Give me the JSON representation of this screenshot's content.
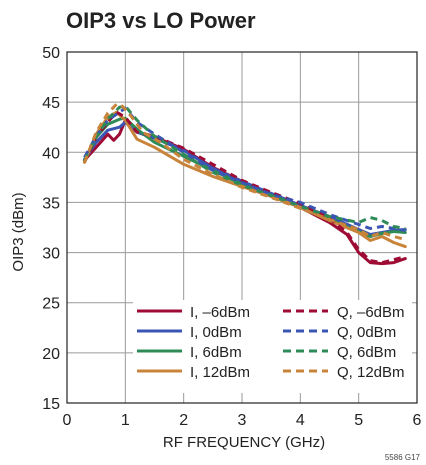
{
  "chart_data": {
    "type": "line",
    "title": "OIP3 vs LO Power",
    "xlabel": "RF FREQUENCY (GHz)",
    "ylabel": "OIP3 (dBm)",
    "xlim": [
      0,
      6
    ],
    "ylim": [
      15,
      50
    ],
    "xticks": [
      0,
      1,
      2,
      3,
      4,
      5,
      6
    ],
    "yticks": [
      15,
      20,
      25,
      30,
      35,
      40,
      45,
      50
    ],
    "grid": true,
    "legend_position": "bottom-right",
    "footnote": "5586 G17",
    "series": [
      {
        "name": "I, –6dBm",
        "color": "#9e0b34",
        "dashed": false,
        "x": [
          0.3,
          0.5,
          0.7,
          0.8,
          0.9,
          1.0,
          1.1,
          1.3,
          1.6,
          2.0,
          2.5,
          3.0,
          3.5,
          4.0,
          4.5,
          4.8,
          5.0,
          5.2,
          5.4,
          5.6,
          5.8
        ],
        "y": [
          39.2,
          40.5,
          41.8,
          41.2,
          41.8,
          43.2,
          42.6,
          41.8,
          41.3,
          40.3,
          38.5,
          37.1,
          35.8,
          34.5,
          33.0,
          31.8,
          30.0,
          29.0,
          28.9,
          29.0,
          29.4
        ]
      },
      {
        "name": "I, 0dBm",
        "color": "#3a55b4",
        "dashed": false,
        "x": [
          0.3,
          0.5,
          0.7,
          0.9,
          1.0,
          1.2,
          1.5,
          2.0,
          2.5,
          3.0,
          3.5,
          4.0,
          4.5,
          5.0,
          5.2,
          5.4,
          5.6,
          5.8
        ],
        "y": [
          39.3,
          41.0,
          42.2,
          42.5,
          43.0,
          42.0,
          41.4,
          40.2,
          38.4,
          37.1,
          35.9,
          34.7,
          33.6,
          32.3,
          31.8,
          32.0,
          32.2,
          32.3
        ]
      },
      {
        "name": "I, 6dBm",
        "color": "#2e8b57",
        "dashed": false,
        "x": [
          0.3,
          0.5,
          0.7,
          0.9,
          1.0,
          1.2,
          1.5,
          2.0,
          2.5,
          3.0,
          3.5,
          4.0,
          4.5,
          5.0,
          5.2,
          5.4,
          5.6,
          5.8
        ],
        "y": [
          39.2,
          41.5,
          42.8,
          43.3,
          43.4,
          42.3,
          41.0,
          39.6,
          38.2,
          36.8,
          35.6,
          34.5,
          33.3,
          32.1,
          31.6,
          31.9,
          32.1,
          32.0
        ]
      },
      {
        "name": "I, 12dBm",
        "color": "#c8843a",
        "dashed": false,
        "x": [
          0.3,
          0.5,
          0.7,
          0.85,
          1.0,
          1.2,
          1.5,
          2.0,
          2.5,
          3.0,
          3.5,
          4.0,
          4.5,
          5.0,
          5.2,
          5.4,
          5.6,
          5.8
        ],
        "y": [
          39.0,
          41.8,
          43.5,
          44.0,
          43.2,
          41.3,
          40.5,
          38.8,
          37.6,
          36.6,
          35.6,
          34.5,
          33.2,
          32.0,
          31.2,
          31.6,
          31.0,
          30.6
        ]
      },
      {
        "name": "Q, –6dBm",
        "color": "#9e0b34",
        "dashed": true,
        "x": [
          0.3,
          0.5,
          0.7,
          0.85,
          1.0,
          1.2,
          1.5,
          2.0,
          2.5,
          3.0,
          3.5,
          4.0,
          4.5,
          4.8,
          5.0,
          5.2,
          5.4,
          5.6,
          5.8
        ],
        "y": [
          39.0,
          41.5,
          43.0,
          44.0,
          43.5,
          42.0,
          41.6,
          40.4,
          38.8,
          37.2,
          36.0,
          34.9,
          33.4,
          32.0,
          30.3,
          29.2,
          29.0,
          29.3,
          29.6
        ]
      },
      {
        "name": "Q, 0dBm",
        "color": "#3a55b4",
        "dashed": true,
        "x": [
          0.3,
          0.5,
          0.7,
          0.9,
          1.0,
          1.2,
          1.5,
          2.0,
          2.5,
          3.0,
          3.5,
          4.0,
          4.5,
          5.0,
          5.2,
          5.4,
          5.6,
          5.8
        ],
        "y": [
          39.5,
          41.6,
          43.2,
          44.0,
          44.4,
          43.0,
          41.8,
          40.0,
          38.2,
          37.0,
          35.8,
          35.0,
          33.8,
          32.8,
          32.4,
          32.6,
          32.4,
          32.2
        ]
      },
      {
        "name": "Q, 6dBm",
        "color": "#2e8b57",
        "dashed": true,
        "x": [
          0.3,
          0.5,
          0.7,
          0.9,
          1.0,
          1.2,
          1.5,
          2.0,
          2.5,
          3.0,
          3.5,
          4.0,
          4.5,
          5.0,
          5.2,
          5.4,
          5.6,
          5.8
        ],
        "y": [
          39.2,
          41.5,
          43.3,
          44.5,
          44.6,
          43.2,
          41.6,
          39.8,
          38.0,
          36.7,
          35.7,
          34.6,
          33.6,
          33.0,
          33.5,
          33.2,
          32.6,
          32.4
        ]
      },
      {
        "name": "Q, 12dBm",
        "color": "#c8843a",
        "dashed": true,
        "x": [
          0.3,
          0.5,
          0.7,
          0.85,
          0.95,
          1.1,
          1.3,
          1.6,
          2.0,
          2.5,
          3.0,
          3.5,
          4.0,
          4.5,
          5.0,
          5.2,
          5.4,
          5.6,
          5.8
        ],
        "y": [
          39.0,
          42.0,
          43.9,
          44.8,
          44.6,
          43.6,
          42.0,
          41.0,
          39.3,
          37.8,
          36.5,
          35.5,
          34.4,
          33.3,
          32.3,
          31.6,
          32.0,
          31.6,
          31.3
        ]
      }
    ]
  }
}
